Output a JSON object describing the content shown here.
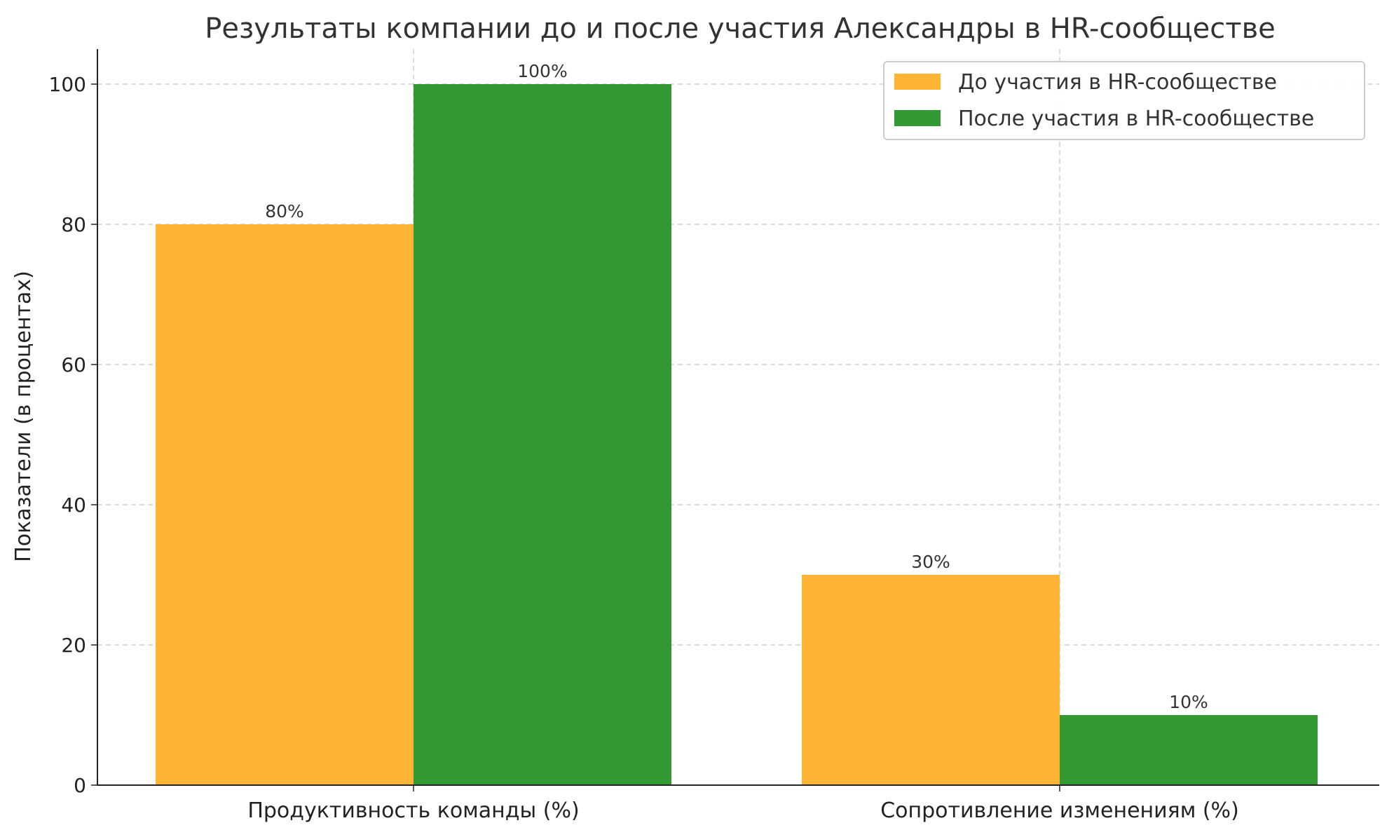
{
  "chart_data": {
    "type": "bar",
    "title": "Результаты компании до и после участия Александры в HR-сообществе",
    "xlabel": "",
    "ylabel": "Показатели (в процентах)",
    "categories": [
      "Продуктивность команды (%)",
      "Сопротивление изменениям (%)"
    ],
    "series": [
      {
        "name": "До участия в HR-сообществе",
        "values": [
          80,
          30
        ],
        "labels": [
          "80%",
          "30%"
        ],
        "color": "#FFB533"
      },
      {
        "name": "После участия в HR-сообществе",
        "values": [
          100,
          10
        ],
        "labels": [
          "100%",
          "10%"
        ],
        "color": "#339933"
      }
    ],
    "ylim": [
      0,
      105
    ],
    "yticks": [
      0,
      20,
      40,
      60,
      80,
      100
    ],
    "grid": true,
    "legend_position": "top-right"
  }
}
